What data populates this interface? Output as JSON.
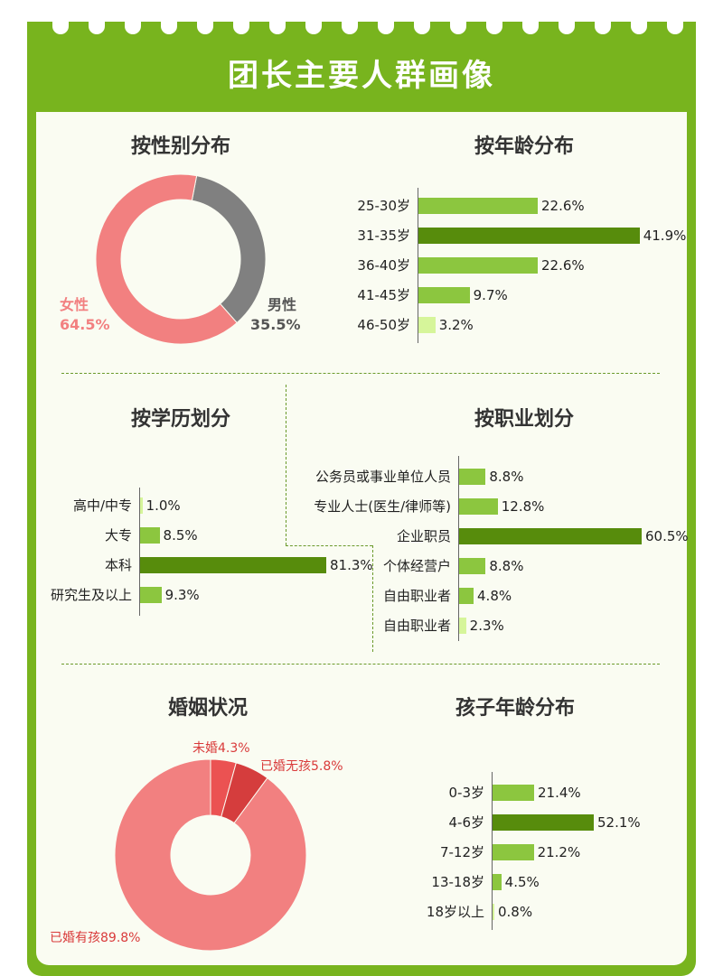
{
  "header": {
    "title": "团长主要人群画像"
  },
  "colors": {
    "frame": "#78b41e",
    "bar_mid": "#8cc63f",
    "bar_dark": "#578c0c",
    "bar_light": "#d6f59a",
    "pink": "#f28080",
    "grey": "#808080",
    "red": "#eb5252",
    "red_dark": "#d53d3d"
  },
  "gender": {
    "title": "按性别分布",
    "chart_data": {
      "type": "pie",
      "categories": [
        "女性",
        "男性"
      ],
      "values": [
        64.5,
        35.5
      ],
      "value_labels": [
        "64.5%",
        "35.5%"
      ]
    }
  },
  "age": {
    "title": "按年龄分布",
    "chart_data": {
      "type": "bar",
      "categories": [
        "25-30岁",
        "31-35岁",
        "36-40岁",
        "41-45岁",
        "46-50岁"
      ],
      "values": [
        22.6,
        41.9,
        22.6,
        9.7,
        3.2
      ],
      "value_labels": [
        "22.6%",
        "41.9%",
        "22.6%",
        "9.7%",
        "3.2%"
      ]
    }
  },
  "education": {
    "title": "按学历划分",
    "chart_data": {
      "type": "bar",
      "categories": [
        "高中/中专",
        "大专",
        "本科",
        "研究生及以上"
      ],
      "values": [
        1.0,
        8.5,
        81.3,
        9.3
      ],
      "value_labels": [
        "1.0%",
        "8.5%",
        "81.3%",
        "9.3%"
      ]
    }
  },
  "occupation": {
    "title": "按职业划分",
    "chart_data": {
      "type": "bar",
      "categories": [
        "公务员或事业单位人员",
        "专业人士(医生/律师等)",
        "企业职员",
        "个体经营户",
        "自由职业者",
        "自由职业者"
      ],
      "values": [
        8.8,
        12.8,
        60.5,
        8.8,
        4.8,
        2.3
      ],
      "value_labels": [
        "8.8%",
        "12.8%",
        "60.5%",
        "8.8%",
        "4.8%",
        "2.3%"
      ]
    }
  },
  "marriage": {
    "title": "婚姻状况",
    "chart_data": {
      "type": "pie",
      "categories": [
        "未婚",
        "已婚无孩",
        "已婚有孩"
      ],
      "values": [
        4.3,
        5.8,
        89.8
      ],
      "labels": [
        "未婚4.3%",
        "已婚无孩5.8%",
        "已婚有孩89.8%"
      ]
    }
  },
  "children": {
    "title": "孩子年龄分布",
    "chart_data": {
      "type": "bar",
      "categories": [
        "0-3岁",
        "4-6岁",
        "7-12岁",
        "13-18岁",
        "18岁以上"
      ],
      "values": [
        21.4,
        52.1,
        21.2,
        4.5,
        0.8
      ],
      "value_labels": [
        "21.4%",
        "52.1%",
        "21.2%",
        "4.5%",
        "0.8%"
      ]
    }
  }
}
